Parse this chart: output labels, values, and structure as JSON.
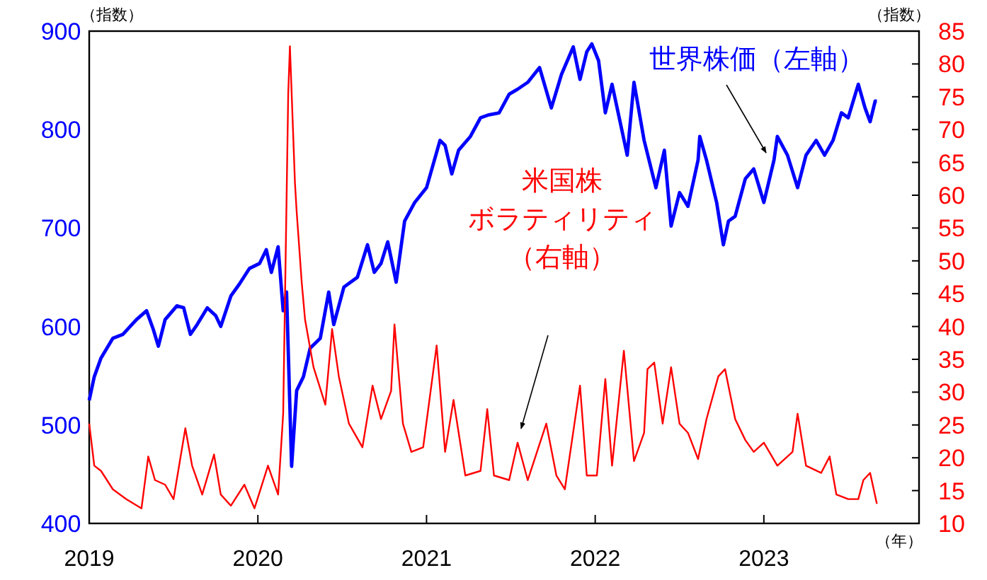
{
  "chart_data": {
    "type": "line",
    "xlabel": "（年）",
    "ylabel": "（指数）",
    "y2label": "（指数）",
    "xlim": [
      2019,
      2023.92
    ],
    "xticks": [
      2019,
      2020,
      2021,
      2022,
      2023
    ],
    "ylim": [
      400,
      900
    ],
    "yticks": [
      400,
      500,
      600,
      700,
      800,
      900
    ],
    "y2lim": [
      10,
      85
    ],
    "y2ticks": [
      10,
      15,
      20,
      25,
      30,
      35,
      40,
      45,
      50,
      55,
      60,
      65,
      70,
      75,
      80,
      85
    ],
    "grid": false,
    "legend": false,
    "line_style": "solid",
    "series": [
      {
        "name": "世界株価（左軸）",
        "color": "#0000ff",
        "axis": "y",
        "x": [
          2019.0,
          2019.03,
          2019.07,
          2019.14,
          2019.2,
          2019.28,
          2019.34,
          2019.38,
          2019.41,
          2019.45,
          2019.52,
          2019.56,
          2019.6,
          2019.64,
          2019.7,
          2019.75,
          2019.78,
          2019.84,
          2019.89,
          2019.95,
          2020.01,
          2020.05,
          2020.08,
          2020.12,
          2020.15,
          2020.17,
          2020.2,
          2020.23,
          2020.27,
          2020.31,
          2020.37,
          2020.42,
          2020.45,
          2020.51,
          2020.59,
          2020.65,
          2020.69,
          2020.73,
          2020.77,
          2020.82,
          2020.87,
          2020.93,
          2021.0,
          2021.04,
          2021.08,
          2021.11,
          2021.15,
          2021.19,
          2021.26,
          2021.32,
          2021.37,
          2021.43,
          2021.49,
          2021.54,
          2021.6,
          2021.67,
          2021.74,
          2021.8,
          2021.87,
          2021.91,
          2021.95,
          2021.98,
          2022.02,
          2022.06,
          2022.1,
          2022.16,
          2022.19,
          2022.23,
          2022.29,
          2022.36,
          2022.41,
          2022.45,
          2022.5,
          2022.55,
          2022.61,
          2022.62,
          2022.66,
          2022.72,
          2022.76,
          2022.79,
          2022.83,
          2022.89,
          2022.94,
          2023.0,
          2023.06,
          2023.08,
          2023.14,
          2023.2,
          2023.25,
          2023.31,
          2023.36,
          2023.41,
          2023.46,
          2023.5,
          2023.56,
          2023.6,
          2023.63,
          2023.66,
          2023.67
        ],
        "values": [
          525,
          549,
          568,
          588,
          592,
          607,
          616,
          597,
          580,
          607,
          621,
          619,
          592,
          602,
          619,
          611,
          600,
          631,
          643,
          659,
          664,
          678,
          655,
          681,
          616,
          635,
          458,
          535,
          549,
          578,
          588,
          635,
          602,
          640,
          650,
          683,
          655,
          664,
          686,
          645,
          707,
          726,
          741,
          765,
          789,
          784,
          755,
          779,
          793,
          812,
          815,
          817,
          836,
          841,
          848,
          863,
          822,
          856,
          884,
          851,
          879,
          887,
          870,
          817,
          846,
          798,
          774,
          848,
          789,
          741,
          779,
          702,
          736,
          722,
          769,
          793,
          769,
          726,
          683,
          707,
          712,
          750,
          760,
          726,
          769,
          793,
          774,
          741,
          774,
          789,
          774,
          789,
          817,
          812,
          846,
          822,
          808,
          829,
          829
        ]
      },
      {
        "name": "米国株ボラティリティ（右軸）",
        "color": "#ff0000",
        "axis": "y2",
        "x": [
          2019.0,
          2019.03,
          2019.07,
          2019.14,
          2019.22,
          2019.31,
          2019.35,
          2019.39,
          2019.45,
          2019.5,
          2019.57,
          2019.61,
          2019.67,
          2019.74,
          2019.78,
          2019.84,
          2019.92,
          2019.98,
          2020.06,
          2020.12,
          2020.15,
          2020.18,
          2020.19,
          2020.22,
          2020.23,
          2020.26,
          2020.28,
          2020.33,
          2020.4,
          2020.44,
          2020.48,
          2020.54,
          2020.62,
          2020.68,
          2020.73,
          2020.79,
          2020.81,
          2020.86,
          2020.91,
          2020.98,
          2021.06,
          2021.11,
          2021.16,
          2021.23,
          2021.32,
          2021.36,
          2021.4,
          2021.49,
          2021.54,
          2021.6,
          2021.71,
          2021.77,
          2021.82,
          2021.91,
          2021.95,
          2022.01,
          2022.06,
          2022.1,
          2022.17,
          2022.23,
          2022.29,
          2022.31,
          2022.35,
          2022.4,
          2022.45,
          2022.5,
          2022.55,
          2022.61,
          2022.66,
          2022.73,
          2022.77,
          2022.83,
          2022.89,
          2022.94,
          2023.0,
          2023.08,
          2023.17,
          2023.2,
          2023.25,
          2023.34,
          2023.39,
          2023.43,
          2023.5,
          2023.56,
          2023.59,
          2023.63,
          2023.67
        ],
        "values": [
          25.2,
          18.8,
          18.0,
          15.2,
          13.7,
          12.3,
          20.2,
          16.6,
          15.9,
          13.7,
          24.5,
          18.8,
          14.4,
          20.5,
          14.4,
          12.7,
          15.9,
          12.3,
          18.8,
          14.4,
          26.7,
          75.5,
          82.7,
          61.8,
          57.5,
          46.7,
          41.0,
          33.8,
          28.1,
          39.6,
          32.4,
          25.2,
          21.6,
          31.0,
          25.9,
          30.2,
          40.3,
          25.2,
          20.9,
          21.6,
          37.1,
          20.9,
          28.8,
          17.3,
          18.0,
          27.4,
          17.3,
          16.6,
          22.3,
          16.6,
          25.2,
          17.3,
          15.2,
          31.0,
          17.3,
          17.3,
          32.0,
          18.8,
          36.3,
          19.5,
          23.8,
          33.5,
          34.5,
          25.2,
          33.8,
          25.2,
          23.8,
          19.8,
          25.9,
          32.4,
          33.5,
          25.9,
          22.7,
          20.9,
          22.3,
          18.8,
          20.9,
          26.7,
          18.8,
          17.7,
          20.2,
          14.4,
          13.7,
          13.7,
          16.6,
          17.7,
          13.0
        ]
      }
    ]
  }
}
